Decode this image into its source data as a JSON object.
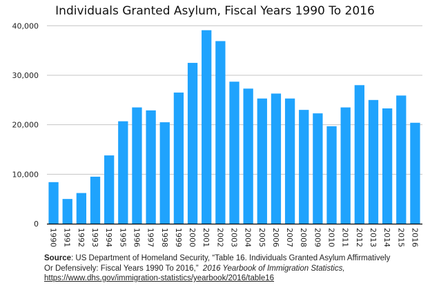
{
  "chart_data": {
    "type": "bar",
    "title": "Individuals Granted Asylum, Fiscal Years 1990 To 2016",
    "xlabel": "",
    "ylabel": "",
    "ylim": [
      0,
      40000
    ],
    "yticks": [
      "0",
      "10,000",
      "20,000",
      "30,000",
      "40,000"
    ],
    "ytick_values": [
      0,
      10000,
      20000,
      30000,
      40000
    ],
    "grid": true,
    "bar_color": "#1fa3fd",
    "categories": [
      "1990",
      "1991",
      "1992",
      "1993",
      "1994",
      "1995",
      "1996",
      "1997",
      "1998",
      "1999",
      "2000",
      "2001",
      "2002",
      "2003",
      "2004",
      "2005",
      "2006",
      "2007",
      "2008",
      "2009",
      "2010",
      "2011",
      "2012",
      "2013",
      "2014",
      "2015",
      "2016"
    ],
    "values": [
      8400,
      5000,
      6200,
      9500,
      13800,
      20700,
      23500,
      22900,
      20500,
      26500,
      32500,
      39100,
      36900,
      28700,
      27300,
      25300,
      26300,
      25300,
      23000,
      22300,
      19700,
      23500,
      28000,
      25000,
      23300,
      25900,
      20400
    ]
  },
  "source": {
    "label": "Source",
    "text1": ": US Department of Homeland Security, “Table 16. Individuals Granted Asylum Affirmatively",
    "text2": "Or Defensively: Fiscal Years 1990 To 2016,”",
    "italic": "2016 Yearbook of Immigration Statistics,",
    "url": "https://www.dhs.gov/immigration-statistics/yearbook/2016/table16"
  }
}
